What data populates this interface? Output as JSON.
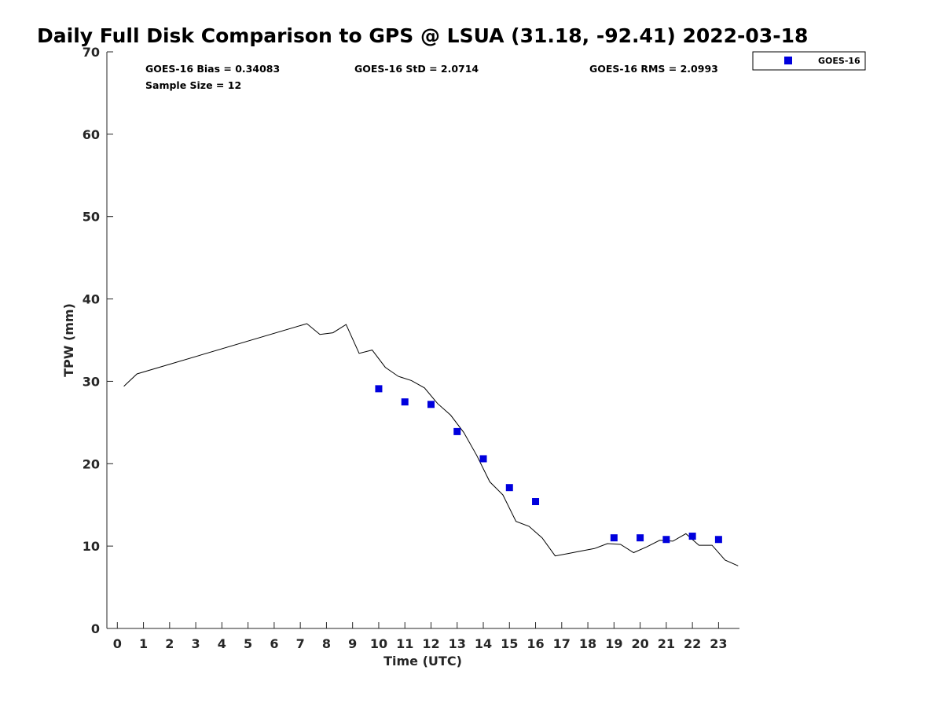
{
  "chart_data": {
    "type": "line",
    "title": "Daily Full Disk Comparison to GPS @ LSUA (31.18, -92.41) 2022-03-18",
    "xlabel": "Time (UTC)",
    "ylabel": "TPW (mm)",
    "xlim": [
      -0.4,
      23.8
    ],
    "ylim": [
      0,
      70
    ],
    "x_ticks": [
      0,
      1,
      2,
      3,
      4,
      5,
      6,
      7,
      8,
      9,
      10,
      11,
      12,
      13,
      14,
      15,
      16,
      17,
      18,
      19,
      20,
      21,
      22,
      23
    ],
    "y_ticks": [
      0,
      10,
      20,
      30,
      40,
      50,
      60,
      70
    ],
    "grid": false,
    "legend_position": "top-right",
    "stats": {
      "bias": "GOES-16 Bias = 0.34083",
      "std": "GOES-16 StD = 2.0714",
      "rms": "GOES-16 RMS = 2.0993",
      "sample": "Sample Size = 12"
    },
    "series": [
      {
        "style": "line",
        "color": "#000000",
        "x": [
          0.25,
          0.75,
          7.25,
          7.75,
          8.25,
          8.75,
          9.25,
          9.75,
          10.25,
          10.75,
          11.25,
          11.75,
          12.25,
          12.75,
          13.25,
          13.75,
          14.25,
          14.75,
          15.25,
          15.75,
          16.25,
          16.75,
          17.25,
          17.75,
          18.25,
          18.75,
          19.25,
          19.75,
          20.25,
          20.75,
          21.25,
          21.75,
          22.25,
          22.75,
          23.25,
          23.75
        ],
        "y": [
          29.4,
          30.9,
          37.0,
          35.7,
          35.9,
          36.9,
          33.4,
          33.8,
          31.7,
          30.6,
          30.1,
          29.2,
          27.3,
          25.9,
          23.8,
          21.0,
          17.8,
          16.2,
          13.0,
          12.4,
          11.0,
          8.8,
          9.1,
          9.4,
          9.7,
          10.3,
          10.2,
          9.2,
          9.9,
          10.7,
          10.6,
          11.5,
          10.1,
          10.1,
          8.3,
          7.6
        ]
      },
      {
        "name": "GOES-16",
        "style": "scatter",
        "color": "#0000dd",
        "x": [
          10,
          11,
          12,
          13,
          14,
          15,
          16,
          19,
          20,
          21,
          22,
          23
        ],
        "y": [
          29.1,
          27.5,
          27.2,
          23.9,
          20.6,
          17.1,
          15.4,
          11.0,
          11.0,
          10.8,
          11.2,
          10.8
        ]
      }
    ]
  }
}
